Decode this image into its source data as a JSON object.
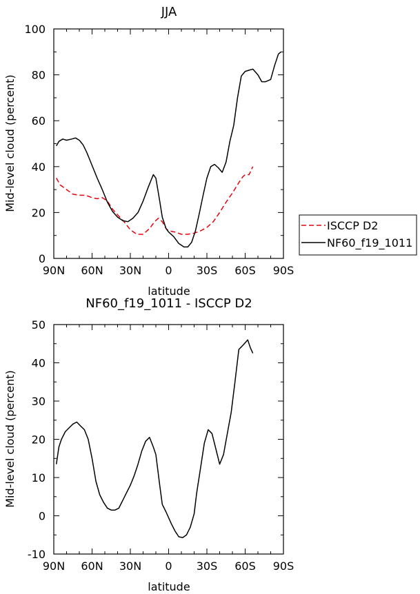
{
  "chart_data": [
    {
      "type": "line",
      "title": "JJA",
      "xlabel": "latitude",
      "ylabel": "Mid-level cloud (percent)",
      "xlim": [
        90,
        -90
      ],
      "ylim": [
        0,
        100
      ],
      "x_ticks": [
        90,
        60,
        30,
        0,
        -30,
        -60,
        -90
      ],
      "x_tick_labels": [
        "90N",
        "60N",
        "30N",
        "0",
        "30S",
        "60S",
        "90S"
      ],
      "y_ticks": [
        0,
        20,
        40,
        60,
        80,
        100
      ],
      "y_tick_labels": [
        "0",
        "20",
        "40",
        "60",
        "80",
        "100"
      ],
      "legend": {
        "placement": "right",
        "entries": [
          "ISCCP D2",
          "NF60_f19_1011"
        ]
      },
      "series": [
        {
          "name": "ISCCP D2",
          "color": "#e8000b",
          "dash": "dashed",
          "x": [
            88,
            85,
            80,
            75,
            70,
            65,
            60,
            56,
            52,
            48,
            44,
            40,
            35,
            30,
            25,
            20,
            15,
            11,
            8,
            5,
            2,
            0,
            -5,
            -10,
            -15,
            -20,
            -25,
            -30,
            -35,
            -40,
            -45,
            -50,
            -55,
            -58,
            -60,
            -63,
            -66
          ],
          "y": [
            35,
            32,
            30,
            28,
            27.5,
            27.5,
            26.5,
            26,
            26.5,
            25,
            21.5,
            19,
            16,
            12.5,
            10.5,
            10.5,
            13,
            16,
            17.5,
            16,
            13,
            12,
            11.5,
            10.5,
            10.5,
            11,
            12,
            13.5,
            16,
            20,
            24.5,
            28.5,
            33,
            35.5,
            36.5,
            36.5,
            40
          ]
        },
        {
          "name": "NF60_f19_1011",
          "color": "#000000",
          "dash": "solid",
          "x": [
            88,
            86,
            83,
            80,
            76,
            73,
            70,
            67,
            64,
            60,
            56,
            52,
            48,
            44,
            40,
            36,
            32,
            28,
            24,
            20,
            16,
            12,
            10,
            7,
            5,
            2,
            0,
            -4,
            -8,
            -12,
            -15,
            -18,
            -21,
            -24,
            -27,
            -30,
            -33,
            -36,
            -39,
            -42,
            -45,
            -48,
            -51,
            -54,
            -57,
            -60,
            -63,
            -66,
            -70,
            -73,
            -76,
            -80,
            -83,
            -86,
            -88
          ],
          "y": [
            49,
            51,
            52,
            51.5,
            52,
            52.5,
            51.5,
            49.5,
            46,
            40.5,
            35,
            30,
            24.5,
            20.5,
            18,
            16.5,
            16,
            17.5,
            20,
            25,
            31,
            36.5,
            35,
            25,
            18,
            13,
            11.5,
            9.5,
            6.5,
            5,
            5,
            7,
            12,
            19.5,
            27.5,
            35,
            40,
            41,
            39.5,
            37.5,
            42,
            51,
            58,
            70,
            79.5,
            81.5,
            82,
            82.5,
            80,
            77,
            77,
            78,
            84,
            89,
            90
          ]
        }
      ]
    },
    {
      "type": "line",
      "title": "NF60_f19_1011 - ISCCP D2",
      "xlabel": "latitude",
      "ylabel": "Mid-level cloud (percent)",
      "xlim": [
        90,
        -90
      ],
      "ylim": [
        -10,
        50
      ],
      "x_ticks": [
        90,
        60,
        30,
        0,
        -30,
        -60,
        -90
      ],
      "x_tick_labels": [
        "90N",
        "60N",
        "30N",
        "0",
        "30S",
        "60S",
        "90S"
      ],
      "y_ticks": [
        -10,
        0,
        10,
        20,
        30,
        40,
        50
      ],
      "y_tick_labels": [
        "-10",
        "0",
        "10",
        "20",
        "30",
        "40",
        "50"
      ],
      "series": [
        {
          "name": "NF60_f19_1011 - ISCCP D2",
          "color": "#000000",
          "dash": "solid",
          "x": [
            88,
            86,
            84,
            81,
            78,
            75,
            72,
            69,
            66,
            63,
            60,
            57,
            54,
            51,
            48,
            45,
            42,
            39,
            36,
            33,
            30,
            27,
            24,
            21,
            18,
            15,
            12,
            10,
            7,
            5,
            2,
            -2,
            -5,
            -8,
            -11,
            -14,
            -17,
            -20,
            -22,
            -25,
            -28,
            -31,
            -34,
            -37,
            -40,
            -43,
            -46,
            -49,
            -52,
            -55,
            -58,
            -62,
            -64,
            -66
          ],
          "y": [
            13.5,
            18,
            20,
            22,
            23,
            24,
            24.5,
            23.5,
            22.5,
            20,
            15,
            9,
            5.5,
            3.5,
            2,
            1.5,
            1.5,
            2,
            4,
            6,
            8,
            10.5,
            13.5,
            17,
            19.5,
            20.5,
            18,
            16,
            8,
            3,
            1,
            -2,
            -4,
            -5.5,
            -5.7,
            -5,
            -3,
            0.5,
            6,
            12.5,
            19,
            22.5,
            21.5,
            17.5,
            13.5,
            16,
            21.5,
            27,
            35,
            43.5,
            44.5,
            46,
            44,
            42.5
          ]
        }
      ]
    }
  ]
}
